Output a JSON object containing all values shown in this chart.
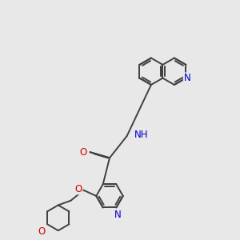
{
  "bg_color": "#e8e8e8",
  "bond_color": "#404040",
  "N_color": "#0000cc",
  "O_color": "#cc0000",
  "figsize": [
    3.0,
    3.0
  ],
  "dpi": 100,
  "xlim": [
    0,
    10
  ],
  "ylim": [
    0,
    10
  ]
}
